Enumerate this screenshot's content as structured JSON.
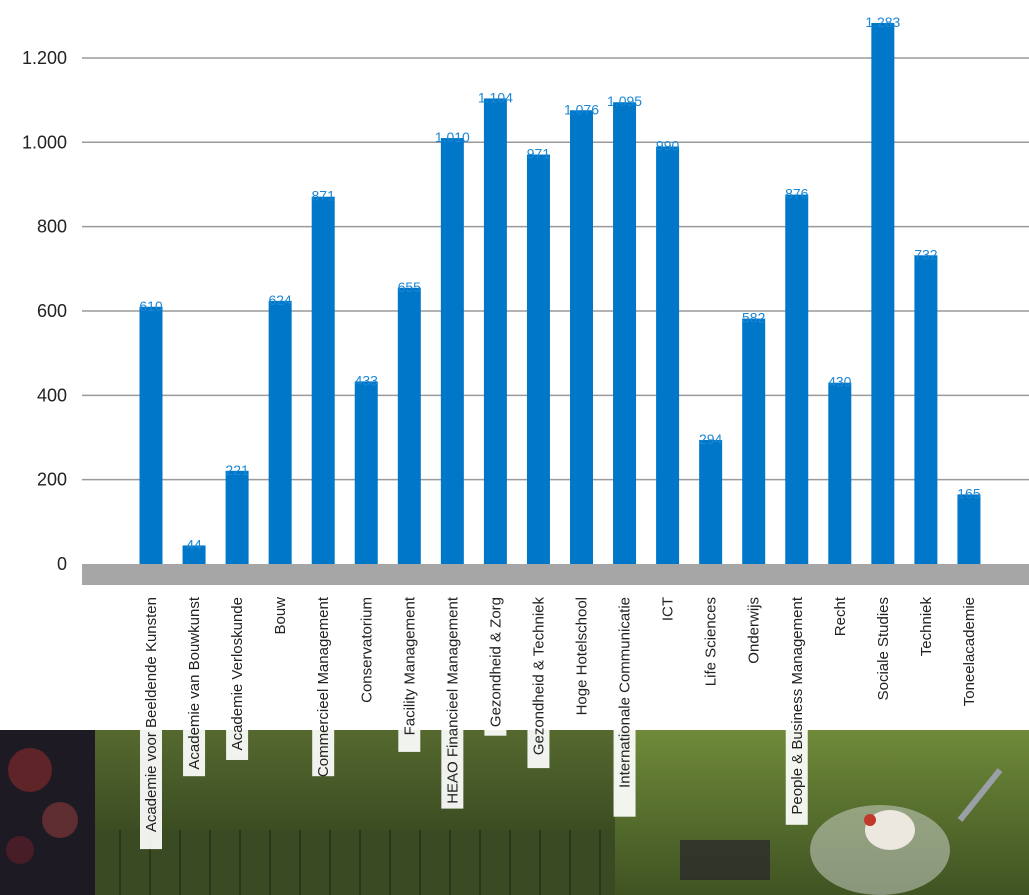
{
  "chart_data": {
    "type": "bar",
    "categories": [
      "Academie voor Beeldende Kunsten",
      "Academie van Bouwkunst",
      "Academie Verloskunde",
      "Bouw",
      "Commercieel Management",
      "Conservatorium",
      "Facility Management",
      "HEAO Financieel Management",
      "Gezondheid & Zorg",
      "Gezondheid & Techniek",
      "Hoge Hotelschool",
      "Internationale Communicatie",
      "ICT",
      "Life Sciences",
      "Onderwijs",
      "People & Business Management",
      "Recht",
      "Sociale Studies",
      "Techniek",
      "Toneelacademie"
    ],
    "values": [
      610,
      44,
      221,
      624,
      871,
      433,
      655,
      1010,
      1104,
      971,
      1076,
      1095,
      990,
      294,
      582,
      876,
      430,
      1283,
      732,
      165
    ],
    "value_labels": [
      "610",
      "44",
      "221",
      "624",
      "871",
      "433",
      "655",
      "1.010",
      "1.104",
      "971",
      "1.076",
      "1.095",
      "990",
      "294",
      "582",
      "876",
      "430",
      "1.283",
      "732",
      "165"
    ],
    "yticks": [
      0,
      200,
      400,
      600,
      800,
      1000,
      1200
    ],
    "ytick_labels": [
      "0",
      "200",
      "400",
      "600",
      "800",
      "1.000",
      "1.200"
    ],
    "ylim": [
      0,
      1283
    ],
    "grid": true,
    "title": "",
    "xlabel": "",
    "ylabel": "",
    "colors": {
      "bar": "#0077c8",
      "value_label": "#1b87d6",
      "grid": "#9a9a9a",
      "baseline": "#a6a6a6"
    }
  }
}
